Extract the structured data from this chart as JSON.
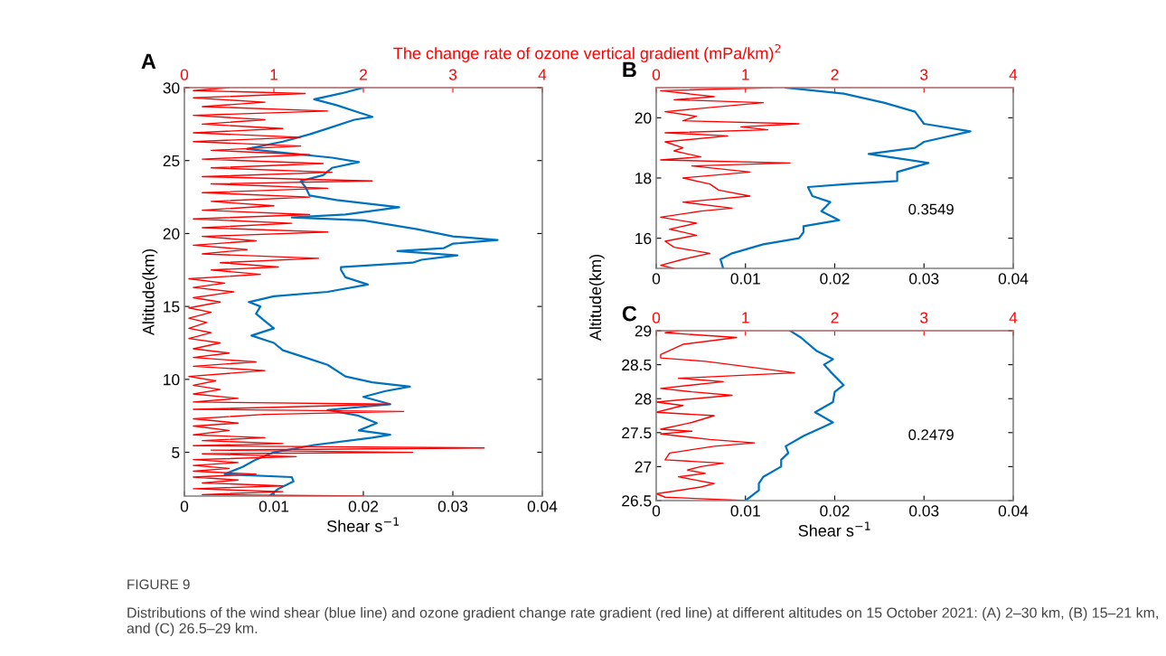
{
  "chart_data": [
    {
      "type": "line",
      "title": "A",
      "xlabel": "Shear s$^{−1}$",
      "ylabel": "Altitude(km)",
      "x2label": "The change rate of ozone vertical gradient (mPa/km)$^{2}$",
      "xlim": [
        0,
        0.04
      ],
      "xticks": [
        0,
        0.01,
        0.02,
        0.03,
        0.04
      ],
      "x2lim": [
        0,
        4
      ],
      "x2ticks": [
        0,
        1,
        2,
        3,
        4
      ],
      "ylim": [
        2,
        30
      ],
      "yticks": [
        5,
        10,
        15,
        20,
        25,
        30
      ],
      "series": [
        {
          "color": "#ff0000",
          "axis": "x2",
          "values": [
            2.0,
            2.1,
            2.3,
            2.5,
            2.7,
            2.9,
            3.1,
            3.3,
            3.5,
            3.7,
            3.9,
            4.1,
            4.3,
            4.5,
            4.7,
            4.9,
            5.0,
            5.15,
            5.3,
            5.45,
            5.6,
            5.8,
            6.0,
            6.2,
            6.5,
            6.8,
            7.0,
            7.3,
            7.6,
            7.8,
            7.95,
            8.1,
            8.3,
            8.45,
            8.7,
            9.0,
            9.3,
            9.6,
            9.9,
            10.2,
            10.6,
            10.9,
            11.2,
            11.5,
            11.8,
            12.1,
            12.5,
            12.8,
            13.2,
            13.5,
            13.9,
            14.2,
            14.6,
            14.9,
            15.3,
            15.6,
            16.0,
            16.3,
            16.6,
            16.9,
            17.2,
            17.5,
            17.7,
            18.0,
            18.3,
            18.6,
            18.9,
            19.2,
            19.5,
            19.8,
            20.1,
            20.4,
            20.7,
            21.0,
            21.3,
            21.6,
            21.9,
            22.2,
            22.5,
            22.8,
            23.1,
            23.4,
            23.6,
            23.9,
            24.2,
            24.5,
            24.8,
            25.1,
            25.4,
            25.7,
            26.0,
            26.3,
            26.6,
            26.9,
            27.2,
            27.5,
            27.8,
            28.1,
            28.4,
            28.7,
            29.0,
            29.3,
            29.6,
            29.8,
            30.0
          ],
          "x": [
            2.0,
            0.2,
            1.1,
            0.1,
            1.1,
            0.2,
            0.6,
            0.1,
            0.8,
            0.1,
            0.5,
            0.1,
            0.6,
            0.1,
            1.25,
            0.2,
            2.55,
            0.3,
            3.35,
            0.1,
            1.1,
            0.2,
            0.9,
            0.1,
            0.5,
            0.1,
            0.6,
            0.1,
            0.9,
            2.45,
            0.1,
            1.1,
            2.3,
            0.1,
            0.6,
            0.1,
            0.4,
            0.1,
            0.35,
            0.05,
            0.9,
            0.1,
            0.8,
            0.1,
            0.5,
            0.1,
            0.4,
            0.05,
            0.3,
            0.05,
            0.25,
            0.05,
            0.3,
            0.05,
            0.4,
            0.1,
            0.55,
            0.1,
            0.45,
            0.05,
            0.85,
            0.3,
            1.05,
            0.4,
            1.5,
            0.2,
            0.7,
            0.1,
            0.8,
            0.2,
            1.6,
            0.2,
            1.2,
            0.1,
            1.4,
            0.2,
            1.0,
            0.3,
            1.4,
            0.2,
            1.6,
            0.3,
            2.1,
            0.2,
            1.65,
            0.3,
            1.55,
            0.2,
            1.4,
            0.3,
            1.3,
            0.1,
            1.3,
            0.1,
            1.1,
            0.2,
            0.9,
            0.1,
            1.6,
            0.2,
            0.9,
            0.1,
            1.35,
            0.1,
            0.5
          ]
        },
        {
          "color": "#0072bd",
          "values": [
            2.0,
            2.5,
            3.0,
            3.3,
            3.5,
            4.0,
            4.5,
            5.0,
            5.5,
            6.0,
            6.2,
            6.5,
            7.0,
            7.5,
            7.9,
            8.3,
            8.8,
            9.2,
            9.5,
            9.8,
            10.2,
            11.0,
            11.5,
            12.0,
            12.5,
            13.0,
            13.5,
            14.0,
            14.5,
            15.0,
            15.3,
            15.7,
            16.0,
            16.5,
            17.0,
            17.5,
            17.7,
            18.0,
            18.2,
            18.5,
            18.8,
            19.0,
            19.3,
            19.55,
            19.8,
            20.3,
            20.9,
            21.1,
            21.3,
            21.8,
            22.3,
            22.6,
            23.2,
            23.6,
            24.0,
            24.5,
            24.9,
            25.2,
            25.8,
            26.3,
            26.8,
            27.3,
            27.8,
            28.0,
            28.3,
            28.8,
            29.2,
            29.6,
            30.0
          ],
          "x": [
            0.0095,
            0.0105,
            0.0122,
            0.012,
            0.0045,
            0.0065,
            0.008,
            0.01,
            0.0145,
            0.021,
            0.023,
            0.0195,
            0.0215,
            0.0195,
            0.016,
            0.023,
            0.02,
            0.0225,
            0.0252,
            0.021,
            0.018,
            0.016,
            0.0135,
            0.011,
            0.01,
            0.0075,
            0.01,
            0.009,
            0.008,
            0.0085,
            0.0072,
            0.01,
            0.016,
            0.0205,
            0.018,
            0.0175,
            0.0175,
            0.0255,
            0.0265,
            0.0305,
            0.0238,
            0.029,
            0.03,
            0.035,
            0.03,
            0.026,
            0.02,
            0.012,
            0.018,
            0.024,
            0.017,
            0.014,
            0.0135,
            0.013,
            0.0155,
            0.0165,
            0.0195,
            0.0165,
            0.007,
            0.011,
            0.014,
            0.0165,
            0.019,
            0.021,
            0.0195,
            0.017,
            0.0145,
            0.0175,
            0.02
          ]
        }
      ],
      "annotations": [
        "FIGURE 9",
        "Distributions of the wind shear (blue line) and ozone gradient change rate gradient (red line) at different altitudes on 15 October 2021: (A) 2–30 km, (B) 15–21 km, and (C) 26.5–29 km."
      ]
    },
    {
      "type": "line",
      "title": "B",
      "ylabel": "Altitude(km)",
      "xlim": [
        0,
        0.04
      ],
      "xticks": [
        0,
        0.01,
        0.02,
        0.03,
        0.04
      ],
      "x2lim": [
        0,
        4
      ],
      "x2ticks": [
        0,
        1,
        2,
        3,
        4
      ],
      "ylim": [
        15,
        21
      ],
      "yticks": [
        16,
        18,
        20
      ],
      "series": [
        {
          "color": "#ff0000",
          "axis": "x2",
          "values": [
            15.0,
            15.1,
            15.3,
            15.5,
            15.7,
            15.9,
            16.1,
            16.3,
            16.5,
            16.7,
            16.9,
            17.0,
            17.2,
            17.4,
            17.6,
            17.8,
            18.0,
            18.2,
            18.4,
            18.5,
            18.6,
            18.7,
            18.9,
            19.0,
            19.2,
            19.4,
            19.5,
            19.6,
            19.7,
            19.8,
            19.9,
            20.05,
            20.2,
            20.3,
            20.5,
            20.6,
            20.7,
            20.9,
            21.0
          ],
          "x": [
            0.2,
            0.05,
            0.3,
            0.6,
            0.2,
            0.1,
            0.45,
            0.15,
            0.45,
            0.05,
            0.5,
            0.85,
            0.3,
            1.05,
            0.7,
            0.6,
            0.3,
            1.05,
            0.4,
            1.5,
            0.05,
            0.5,
            0.2,
            0.3,
            0.1,
            0.8,
            0.1,
            1.25,
            0.95,
            1.6,
            0.3,
            0.45,
            0.1,
            0.45,
            1.2,
            0.2,
            0.65,
            0.05,
            1.3
          ]
        },
        {
          "color": "#0072bd",
          "values": [
            15.0,
            15.3,
            15.5,
            15.8,
            16.0,
            16.2,
            16.4,
            16.6,
            16.9,
            17.2,
            17.4,
            17.7,
            17.8,
            17.9,
            18.2,
            18.5,
            18.8,
            19.0,
            19.2,
            19.55,
            19.8,
            20.2,
            20.5,
            20.8,
            21.0
          ],
          "x": [
            0.0075,
            0.0072,
            0.0085,
            0.012,
            0.016,
            0.0165,
            0.0165,
            0.0205,
            0.0185,
            0.0195,
            0.0175,
            0.017,
            0.0215,
            0.027,
            0.027,
            0.0305,
            0.0238,
            0.029,
            0.03,
            0.0352,
            0.03,
            0.029,
            0.0255,
            0.021,
            0.0145
          ]
        }
      ],
      "annotations": [
        "0.3549"
      ]
    },
    {
      "type": "line",
      "title": "C",
      "xlabel": "Shear s$^{−1}$",
      "xlim": [
        0,
        0.04
      ],
      "xticks": [
        0,
        0.01,
        0.02,
        0.03,
        0.04
      ],
      "x2lim": [
        0,
        4
      ],
      "x2ticks": [
        0,
        1,
        2,
        3,
        4
      ],
      "ylim": [
        26.5,
        29
      ],
      "yticks": [
        26.5,
        27,
        27.5,
        28,
        28.5,
        29
      ],
      "series": [
        {
          "color": "#ff0000",
          "axis": "x2",
          "values": [
            26.5,
            26.55,
            26.6,
            26.7,
            26.75,
            26.85,
            26.9,
            26.95,
            27.0,
            27.05,
            27.1,
            27.2,
            27.3,
            27.35,
            27.4,
            27.48,
            27.52,
            27.55,
            27.65,
            27.75,
            27.8,
            27.9,
            27.95,
            28.05,
            28.1,
            28.15,
            28.25,
            28.3,
            28.38,
            28.55,
            28.6,
            28.65,
            28.8,
            28.9,
            28.97,
            29.0
          ],
          "x": [
            1.0,
            0.1,
            0.0,
            0.5,
            0.65,
            0.25,
            0.55,
            0.35,
            0.5,
            0.75,
            0.1,
            0.15,
            0.65,
            1.1,
            0.6,
            0.05,
            0.4,
            0.05,
            0.4,
            0.65,
            0.0,
            0.3,
            0.0,
            0.85,
            0.4,
            0.05,
            0.75,
            0.25,
            1.55,
            0.55,
            0.05,
            0.05,
            0.3,
            0.9,
            0.1,
            0.25
          ]
        },
        {
          "color": "#0072bd",
          "values": [
            26.5,
            26.65,
            26.75,
            26.85,
            27.0,
            27.1,
            27.2,
            27.3,
            27.45,
            27.6,
            27.65,
            27.8,
            27.95,
            28.1,
            28.2,
            28.4,
            28.5,
            28.58,
            28.7,
            28.9,
            29.0
          ],
          "x": [
            0.01,
            0.0115,
            0.0115,
            0.012,
            0.014,
            0.014,
            0.0148,
            0.0145,
            0.0165,
            0.019,
            0.0198,
            0.0178,
            0.0198,
            0.02,
            0.021,
            0.0195,
            0.0188,
            0.0198,
            0.018,
            0.0162,
            0.015
          ]
        }
      ],
      "annotations": [
        "0.2479"
      ]
    }
  ]
}
